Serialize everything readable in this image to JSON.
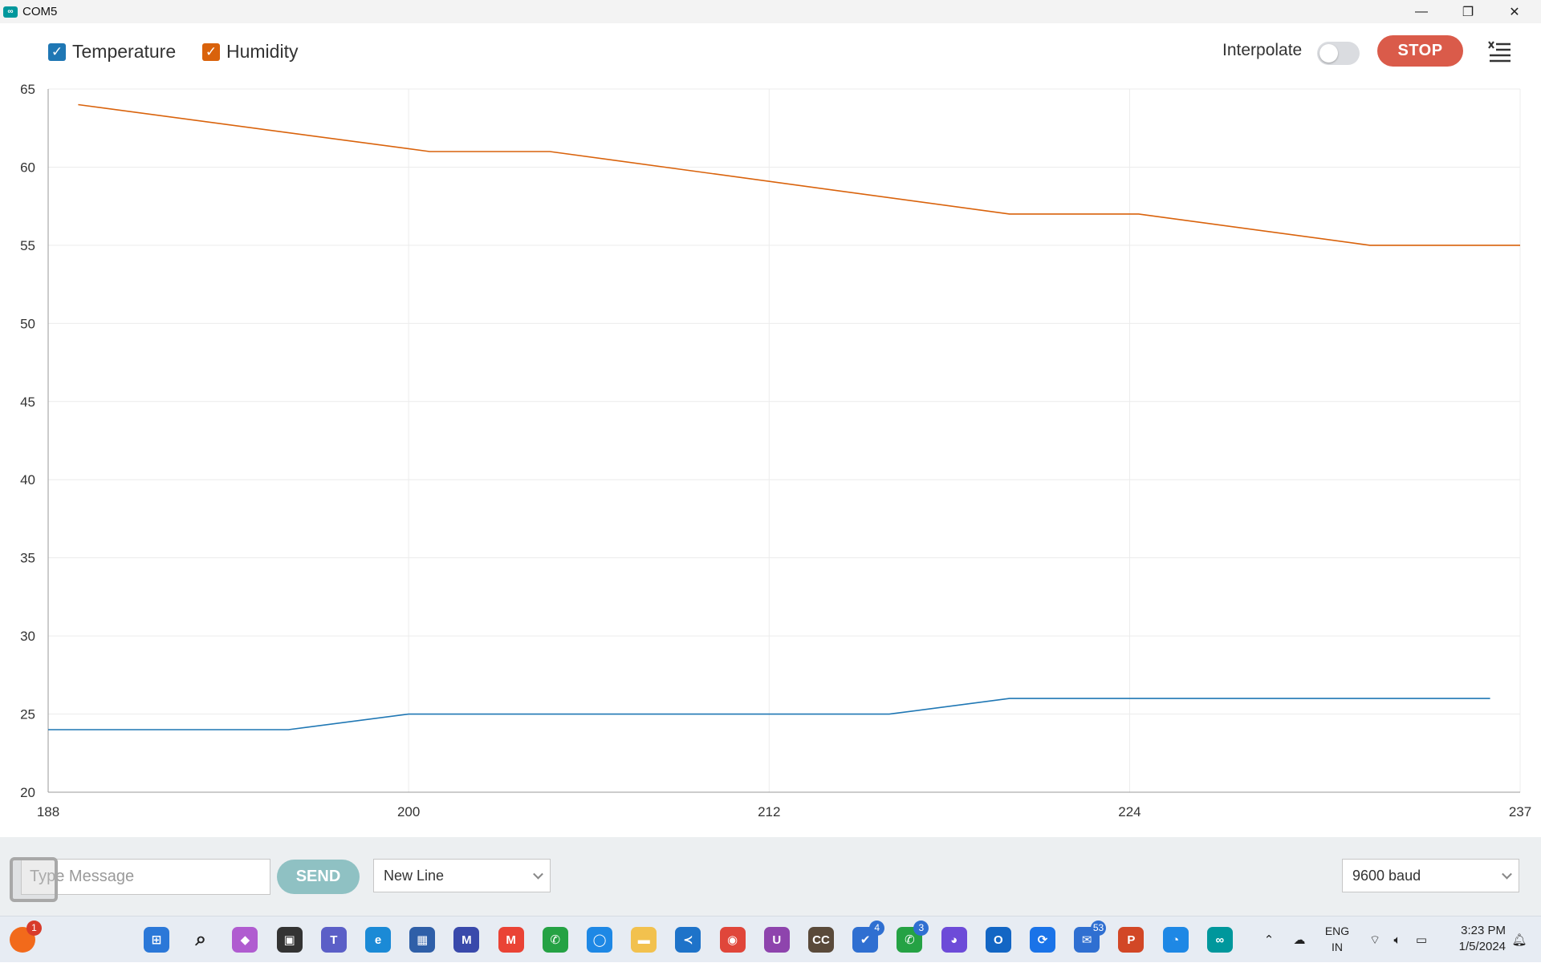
{
  "window": {
    "title": "COM5",
    "app_icon": "arduino-infinity-icon",
    "controls": [
      "minimize-icon",
      "restore-icon",
      "close-icon"
    ]
  },
  "toolbar": {
    "series_toggles": [
      {
        "label": "Temperature",
        "checked": true,
        "color": "#1f77b4"
      },
      {
        "label": "Humidity",
        "checked": true,
        "color": "#d9620b"
      }
    ],
    "interpolate_label": "Interpolate",
    "interpolate_on": false,
    "stop_label": "STOP",
    "menu_icon": "clear-list-icon"
  },
  "chart_data": {
    "type": "line",
    "x_ticks": [
      "188",
      "200",
      "212",
      "224",
      "237"
    ],
    "y_ticks": [
      "65",
      "60",
      "55",
      "50",
      "45",
      "40",
      "35",
      "30",
      "25",
      "20"
    ],
    "xlim": [
      188,
      237
    ],
    "ylim": [
      20,
      65
    ],
    "grid": true,
    "series": [
      {
        "name": "Temperature",
        "color": "#1f77b4",
        "points": [
          [
            188,
            24
          ],
          [
            196,
            24
          ],
          [
            200,
            25
          ],
          [
            203,
            25
          ],
          [
            216,
            25
          ],
          [
            220,
            26
          ],
          [
            236,
            26
          ]
        ]
      },
      {
        "name": "Humidity",
        "color": "#d9620b",
        "points": [
          [
            189,
            64
          ],
          [
            200.7,
            61
          ],
          [
            204.7,
            61
          ],
          [
            220,
            57
          ],
          [
            224.3,
            57
          ],
          [
            232,
            55
          ],
          [
            237,
            55
          ]
        ]
      }
    ]
  },
  "bottombar": {
    "message_placeholder": "Type Message",
    "send_label": "SEND",
    "line_ending": "New Line",
    "baud": "9600 baud"
  },
  "taskbar": {
    "left_badge": "1",
    "apps": [
      {
        "name": "start-icon",
        "color": "#2b78d8",
        "glyph": "⊞",
        "badge": ""
      },
      {
        "name": "search-icon",
        "color": "transparent",
        "glyph": "⌕",
        "badge": ""
      },
      {
        "name": "copilot-icon",
        "color": "#b05cd0",
        "glyph": "◆",
        "badge": ""
      },
      {
        "name": "task-view-icon",
        "color": "#333333",
        "glyph": "▣",
        "badge": ""
      },
      {
        "name": "teams-icon",
        "color": "#5b5fc7",
        "glyph": "T",
        "badge": ""
      },
      {
        "name": "edge-icon",
        "color": "#1b8ad6",
        "glyph": "e",
        "badge": ""
      },
      {
        "name": "store-icon",
        "color": "#2f5fa8",
        "glyph": "▦",
        "badge": ""
      },
      {
        "name": "matlab-icon",
        "color": "#3949ab",
        "glyph": "M",
        "badge": ""
      },
      {
        "name": "gmail-icon",
        "color": "#ea4335",
        "glyph": "M",
        "badge": ""
      },
      {
        "name": "whatsapp-icon",
        "color": "#25a244",
        "glyph": "✆",
        "badge": ""
      },
      {
        "name": "app-circle-icon",
        "color": "#1e88e5",
        "glyph": "◯",
        "badge": ""
      },
      {
        "name": "file-explorer-icon",
        "color": "#f2c14e",
        "glyph": "▬",
        "badge": ""
      },
      {
        "name": "vscode-icon",
        "color": "#1e73c9",
        "glyph": "≺",
        "badge": ""
      },
      {
        "name": "chrome-icon",
        "color": "#e0463a",
        "glyph": "◉",
        "badge": ""
      },
      {
        "name": "app-u-icon",
        "color": "#8e44ad",
        "glyph": "U",
        "badge": ""
      },
      {
        "name": "cc-icon",
        "color": "#5a4a3a",
        "glyph": "CC",
        "badge": ""
      },
      {
        "name": "todo-icon",
        "color": "#2f6fd1",
        "glyph": "✔",
        "badge": "4"
      },
      {
        "name": "whatsapp-business-icon",
        "color": "#25a244",
        "glyph": "✆",
        "badge": "3"
      },
      {
        "name": "messenger-icon",
        "color": "#6d4bd8",
        "glyph": "◕",
        "badge": ""
      },
      {
        "name": "outlook-new-icon",
        "color": "#1366c4",
        "glyph": "O",
        "badge": ""
      },
      {
        "name": "sync-icon",
        "color": "#1a73e8",
        "glyph": "⟳",
        "badge": ""
      },
      {
        "name": "mail-icon",
        "color": "#2f6fd1",
        "glyph": "✉",
        "badge": "53"
      },
      {
        "name": "powerpoint-icon",
        "color": "#d24726",
        "glyph": "P",
        "badge": ""
      },
      {
        "name": "settings-gauge-icon",
        "color": "#1e88e5",
        "glyph": "◔",
        "badge": ""
      },
      {
        "name": "arduino-icon",
        "color": "#00979c",
        "glyph": "∞",
        "badge": ""
      }
    ],
    "language": [
      "ENG",
      "IN"
    ],
    "time": "3:23 PM",
    "date": "1/5/2024"
  }
}
